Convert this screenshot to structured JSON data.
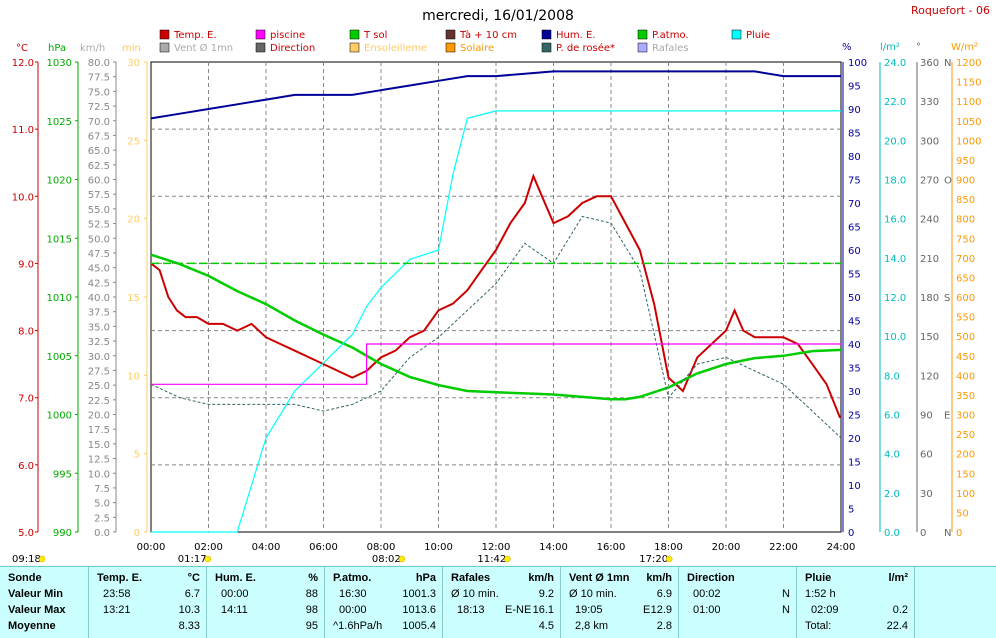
{
  "title": "mercredi, 16/01/2008",
  "station": "Roquefort - 06",
  "legend": [
    {
      "label": "Temp. E.",
      "color": "#cc0000"
    },
    {
      "label": "piscine",
      "color": "#ff00ff"
    },
    {
      "label": "T sol",
      "color": "#00cc00"
    },
    {
      "label": "Tà + 10 cm",
      "color": "#663333"
    },
    {
      "label": "Hum. E.",
      "color": "#000099"
    },
    {
      "label": "P.atmo.",
      "color": "#00cc00"
    },
    {
      "label": "Pluie",
      "color": "#00ffff"
    },
    {
      "label": "Vent Ø 1mn",
      "color": "#aaaaaa"
    },
    {
      "label": "Direction",
      "color": "#666666"
    },
    {
      "label": "Ensoleilleme",
      "color": "#ffcc66"
    },
    {
      "label": "Solaire",
      "color": "#ff9900"
    },
    {
      "label": "P. de rosée*",
      "color": "#336666"
    },
    {
      "label": "Rafales",
      "color": "#aaaaff"
    }
  ],
  "axes": {
    "temp": {
      "unit": "°C",
      "ticks": [
        "12.0",
        "11.0",
        "10.0",
        "9.0",
        "8.0",
        "7.0",
        "6.0",
        "5.0"
      ],
      "color": "#cc0000"
    },
    "press": {
      "unit": "hPa",
      "ticks": [
        "1030",
        "1025",
        "1020",
        "1015",
        "1010",
        "1005",
        "1000",
        "995",
        "990"
      ],
      "color": "#00aa00"
    },
    "wind": {
      "unit": "km/h",
      "ticks": [
        "80.0",
        "77.5",
        "75.0",
        "72.5",
        "70.0",
        "67.5",
        "65.0",
        "62.5",
        "60.0",
        "57.5",
        "55.0",
        "52.5",
        "50.0",
        "47.5",
        "45.0",
        "42.5",
        "40.0",
        "37.5",
        "35.0",
        "32.5",
        "30.0",
        "27.5",
        "25.0",
        "22.5",
        "20.0",
        "17.5",
        "15.0",
        "12.5",
        "10.0",
        "7.5",
        "5.0",
        "2.5",
        "0.0"
      ],
      "color": "#888888"
    },
    "min": {
      "unit": "min",
      "ticks": [
        "30",
        "25",
        "20",
        "15",
        "10",
        "5",
        "0"
      ],
      "color": "#ffcc66"
    },
    "hum": {
      "unit": "%",
      "ticks": [
        "100",
        "95",
        "90",
        "85",
        "80",
        "75",
        "70",
        "65",
        "60",
        "55",
        "50",
        "45",
        "40",
        "35",
        "30",
        "25",
        "20",
        "15",
        "10",
        "5",
        "0"
      ],
      "color": "#000099"
    },
    "rain": {
      "unit": "l/m²",
      "ticks": [
        "24.0",
        "22.0",
        "20.0",
        "18.0",
        "16.0",
        "14.0",
        "12.0",
        "10.0",
        "8.0",
        "6.0",
        "4.0",
        "2.0",
        "0.0"
      ],
      "color": "#00bbbb"
    },
    "dir": {
      "unit": "°",
      "ticks": [
        "360",
        "330",
        "300",
        "270",
        "240",
        "210",
        "180",
        "150",
        "120",
        "90",
        "60",
        "30",
        "0"
      ],
      "letters": [
        "N",
        "",
        "",
        "O",
        "",
        "",
        "S",
        "",
        "",
        "E",
        "",
        "",
        "N"
      ],
      "color": "#666666"
    },
    "solar": {
      "unit": "W/m²",
      "ticks": [
        "1200",
        "1150",
        "1100",
        "1050",
        "1000",
        "950",
        "900",
        "850",
        "800",
        "750",
        "700",
        "650",
        "600",
        "550",
        "500",
        "450",
        "400",
        "350",
        "300",
        "250",
        "200",
        "150",
        "100",
        "50",
        "0"
      ],
      "color": "#ff9900"
    },
    "time": [
      "00:00",
      "02:00",
      "04:00",
      "06:00",
      "08:00",
      "10:00",
      "12:00",
      "14:00",
      "16:00",
      "18:00",
      "20:00",
      "22:00",
      "24:00"
    ]
  },
  "sun_events": [
    {
      "label": "09:18",
      "hour": -1
    },
    {
      "label": "01:17",
      "hour": 1.28
    },
    {
      "label": "08:02",
      "hour": 8.03
    },
    {
      "label": "11:42",
      "hour": 11.7
    },
    {
      "label": "17:20",
      "hour": 17.33
    }
  ],
  "chart_data": {
    "type": "line",
    "title": "mercredi, 16/01/2008",
    "x_range": [
      0,
      24
    ],
    "series": [
      {
        "name": "Temp. E.",
        "unit": "°C",
        "points": [
          [
            0,
            9.0
          ],
          [
            0.3,
            8.9
          ],
          [
            0.6,
            8.5
          ],
          [
            0.9,
            8.3
          ],
          [
            1.2,
            8.2
          ],
          [
            1.6,
            8.2
          ],
          [
            2.0,
            8.1
          ],
          [
            2.5,
            8.1
          ],
          [
            3.0,
            8.0
          ],
          [
            3.5,
            8.1
          ],
          [
            4.0,
            7.9
          ],
          [
            4.5,
            7.8
          ],
          [
            5.0,
            7.7
          ],
          [
            5.5,
            7.6
          ],
          [
            6.0,
            7.5
          ],
          [
            6.5,
            7.4
          ],
          [
            7.0,
            7.3
          ],
          [
            7.5,
            7.4
          ],
          [
            8.0,
            7.6
          ],
          [
            8.5,
            7.7
          ],
          [
            9.0,
            7.9
          ],
          [
            9.5,
            8.0
          ],
          [
            10.0,
            8.3
          ],
          [
            10.5,
            8.4
          ],
          [
            11.0,
            8.6
          ],
          [
            11.5,
            8.9
          ],
          [
            12.0,
            9.2
          ],
          [
            12.5,
            9.6
          ],
          [
            13.0,
            9.9
          ],
          [
            13.3,
            10.3
          ],
          [
            13.6,
            10.0
          ],
          [
            14.0,
            9.6
          ],
          [
            14.5,
            9.7
          ],
          [
            15.0,
            9.9
          ],
          [
            15.5,
            10.0
          ],
          [
            16.0,
            10.0
          ],
          [
            16.5,
            9.6
          ],
          [
            17.0,
            9.2
          ],
          [
            17.5,
            8.4
          ],
          [
            18.0,
            7.3
          ],
          [
            18.5,
            7.1
          ],
          [
            19.0,
            7.6
          ],
          [
            19.5,
            7.8
          ],
          [
            20.0,
            8.0
          ],
          [
            20.3,
            8.3
          ],
          [
            20.6,
            8.0
          ],
          [
            21.0,
            7.9
          ],
          [
            21.5,
            7.9
          ],
          [
            22.0,
            7.9
          ],
          [
            22.5,
            7.8
          ],
          [
            23.0,
            7.5
          ],
          [
            23.5,
            7.2
          ],
          [
            23.97,
            6.7
          ]
        ]
      },
      {
        "name": "P.atmo.",
        "unit": "hPa",
        "points": [
          [
            0,
            1013.6
          ],
          [
            1,
            1012.8
          ],
          [
            2,
            1011.8
          ],
          [
            3,
            1010.5
          ],
          [
            4,
            1009.4
          ],
          [
            5,
            1008.0
          ],
          [
            6,
            1006.8
          ],
          [
            7,
            1005.7
          ],
          [
            8,
            1004.3
          ],
          [
            9,
            1003.2
          ],
          [
            10,
            1002.5
          ],
          [
            11,
            1002.0
          ],
          [
            12,
            1001.9
          ],
          [
            13,
            1001.8
          ],
          [
            14,
            1001.7
          ],
          [
            15,
            1001.5
          ],
          [
            16,
            1001.3
          ],
          [
            16.5,
            1001.3
          ],
          [
            17,
            1001.5
          ],
          [
            18,
            1002.3
          ],
          [
            19,
            1003.5
          ],
          [
            20,
            1004.3
          ],
          [
            21,
            1004.8
          ],
          [
            22,
            1005.0
          ],
          [
            23,
            1005.4
          ],
          [
            24,
            1005.5
          ]
        ]
      },
      {
        "name": "Hum. E.",
        "unit": "%",
        "points": [
          [
            0,
            88
          ],
          [
            1,
            89
          ],
          [
            2,
            90
          ],
          [
            3,
            91
          ],
          [
            4,
            92
          ],
          [
            5,
            93
          ],
          [
            6,
            93
          ],
          [
            7,
            93
          ],
          [
            8,
            94
          ],
          [
            9,
            95
          ],
          [
            10,
            96
          ],
          [
            11,
            97
          ],
          [
            12,
            97
          ],
          [
            13,
            97.5
          ],
          [
            14,
            98
          ],
          [
            15,
            98
          ],
          [
            16,
            98
          ],
          [
            17,
            98
          ],
          [
            18,
            98
          ],
          [
            19,
            98
          ],
          [
            20,
            98
          ],
          [
            21,
            98
          ],
          [
            22,
            97
          ],
          [
            23,
            97
          ],
          [
            24,
            97
          ]
        ]
      },
      {
        "name": "Pluie",
        "unit": "l/m²",
        "points": [
          [
            0,
            0
          ],
          [
            3,
            0
          ],
          [
            3.5,
            2.5
          ],
          [
            4,
            5
          ],
          [
            5,
            7.5
          ],
          [
            6,
            9
          ],
          [
            7,
            10.5
          ],
          [
            7.5,
            12
          ],
          [
            8,
            13
          ],
          [
            9,
            14.5
          ],
          [
            10,
            15
          ],
          [
            10.5,
            19
          ],
          [
            11.0,
            22.0
          ],
          [
            12,
            22.4
          ],
          [
            24,
            22.4
          ]
        ]
      },
      {
        "name": "P. de rosée*",
        "unit": "°C",
        "points": [
          [
            0,
            7.2
          ],
          [
            1,
            7.0
          ],
          [
            2,
            6.9
          ],
          [
            3,
            6.9
          ],
          [
            4,
            6.9
          ],
          [
            5,
            6.9
          ],
          [
            6,
            6.8
          ],
          [
            7,
            6.9
          ],
          [
            8,
            7.1
          ],
          [
            9,
            7.6
          ],
          [
            10,
            7.9
          ],
          [
            11,
            8.3
          ],
          [
            12,
            8.7
          ],
          [
            13,
            9.3
          ],
          [
            14,
            9.0
          ],
          [
            15,
            9.7
          ],
          [
            16,
            9.6
          ],
          [
            17,
            8.9
          ],
          [
            18,
            7.0
          ],
          [
            19,
            7.5
          ],
          [
            20,
            7.6
          ],
          [
            21,
            7.4
          ],
          [
            22,
            7.2
          ],
          [
            23,
            6.8
          ],
          [
            24,
            6.4
          ]
        ]
      },
      {
        "name": "T sol",
        "unit": "°C",
        "points": [
          [
            0,
            9.0
          ],
          [
            24,
            9.0
          ]
        ]
      },
      {
        "name": "piscine",
        "unit": "°C",
        "points": [
          [
            0,
            7.2
          ],
          [
            7.5,
            7.2
          ],
          [
            7.5,
            7.8
          ],
          [
            24,
            7.8
          ]
        ]
      }
    ]
  },
  "summary": {
    "rows": [
      "Sonde",
      "Valeur Min",
      "Valeur Max",
      "Moyenne"
    ],
    "temp": {
      "title": "Temp. E.",
      "unit": "°C",
      "rows": [
        [
          "23:58",
          "6.7"
        ],
        [
          "13:21",
          "10.3"
        ],
        [
          "",
          "8.33"
        ]
      ]
    },
    "hum": {
      "title": "Hum. E.",
      "unit": "%",
      "rows": [
        [
          "00:00",
          "88"
        ],
        [
          "14:11",
          "98"
        ],
        [
          "",
          "95"
        ]
      ]
    },
    "patmo": {
      "title": "P.atmo.",
      "unit": "hPa",
      "rows": [
        [
          "16:30",
          "1001.3"
        ],
        [
          "00:00",
          "1013.6"
        ],
        [
          "^1.6hPa/h",
          "1005.4"
        ]
      ]
    },
    "rafales": {
      "title": "Rafales",
      "unit": "km/h",
      "rows": [
        [
          "Ø 10 min.",
          "",
          "9.2"
        ],
        [
          "18:13",
          "E-NE",
          "16.1"
        ],
        [
          "",
          "",
          "4.5"
        ]
      ]
    },
    "vent": {
      "title": "Vent Ø 1mn",
      "unit": "km/h",
      "rows": [
        [
          "Ø 10 min.",
          "",
          "6.9"
        ],
        [
          "19:05",
          "E",
          "12.9"
        ],
        [
          "2,8 km",
          "",
          "2.8"
        ]
      ]
    },
    "direction": {
      "title": "Direction",
      "rows": [
        [
          "00:02",
          "N"
        ],
        [
          "01:00",
          "N"
        ],
        [
          "",
          ""
        ]
      ]
    },
    "pluie": {
      "title": "Pluie",
      "unit": "l/m²",
      "rows": [
        [
          "1:52 h",
          ""
        ],
        [
          "02:09",
          "0.2"
        ],
        [
          "Total:",
          "22.4"
        ]
      ]
    }
  }
}
